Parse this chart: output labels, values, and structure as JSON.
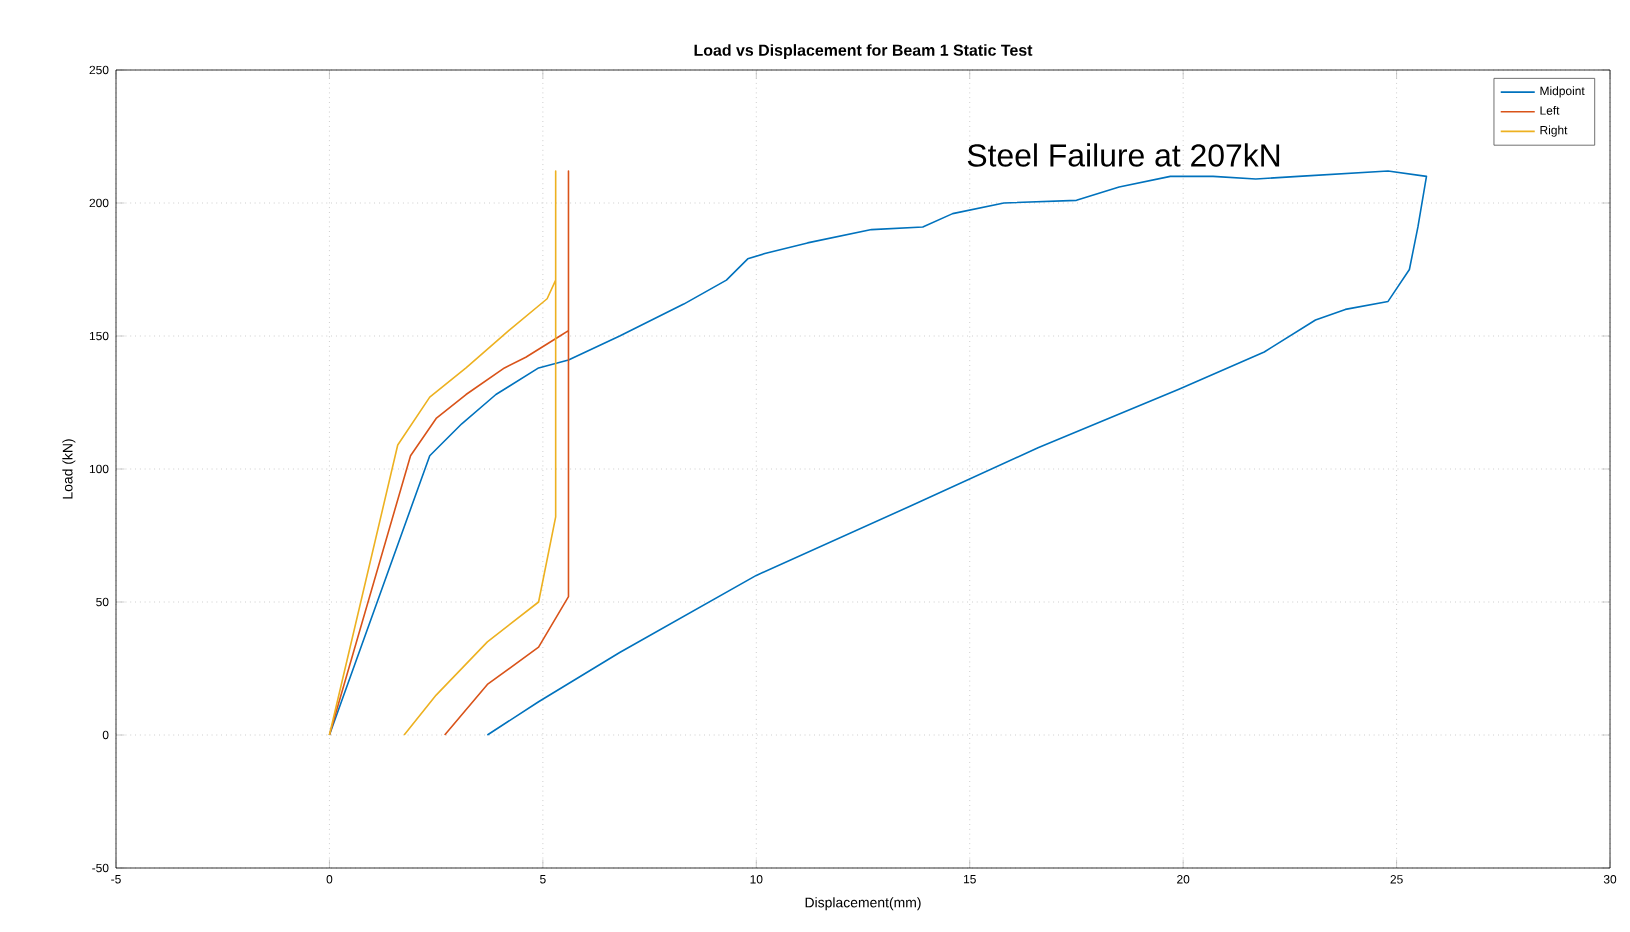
{
  "chart_data": {
    "type": "line",
    "title": "Load vs Displacement for Beam 1 Static Test",
    "xlabel": "Displacement(mm)",
    "ylabel": "Load (kN)",
    "annotations": [
      "Steel Failure  at 207kN"
    ],
    "xlim": [
      -5,
      30
    ],
    "ylim": [
      -50,
      250
    ],
    "xticks": [
      -5,
      0,
      5,
      10,
      15,
      20,
      25,
      30
    ],
    "yticks": [
      -50,
      0,
      50,
      100,
      150,
      200,
      250
    ],
    "grid": true,
    "legend": "top right",
    "marker": "none",
    "line_style": "solid",
    "series": [
      {
        "name": "Midpoint",
        "color": "#0072bd",
        "x": [
          0,
          2.35,
          3.1,
          3.9,
          4.9,
          5.6,
          6.8,
          7.8,
          8.3,
          9.3,
          9.8,
          10.2,
          11.2,
          12.7,
          13.9,
          14.6,
          15.8,
          17.5,
          18.5,
          19.7,
          20.7,
          21.7,
          22.7,
          24.8,
          25.7,
          25.5,
          25.3,
          24.8,
          23.8,
          23.1,
          21.9,
          19.9,
          16.6,
          13.6,
          10.0,
          6.8,
          4.9,
          3.7
        ],
        "values": [
          0,
          105,
          117,
          128,
          138,
          141,
          150,
          158,
          162,
          171,
          179,
          181,
          185,
          190,
          191,
          196,
          200,
          201,
          206,
          210,
          210,
          209,
          210,
          212,
          210,
          191,
          175,
          163,
          160,
          156,
          144,
          130,
          108,
          86,
          60,
          31,
          12.5,
          0
        ]
      },
      {
        "name": "Left",
        "color": "#d95319",
        "x": [
          0,
          1.9,
          2.5,
          3.2,
          4.1,
          4.6,
          5.4,
          5.6,
          5.6,
          5.6,
          4.9,
          3.7,
          2.7
        ],
        "values": [
          0,
          105,
          119,
          128,
          138,
          142,
          150,
          152,
          212,
          52,
          33,
          19,
          0
        ]
      },
      {
        "name": "Right",
        "color": "#edb120",
        "x": [
          0,
          1.6,
          2.35,
          3.2,
          4.2,
          5.1,
          5.3,
          5.3,
          5.3,
          4.9,
          3.7,
          2.5,
          1.75
        ],
        "values": [
          0,
          109,
          127,
          138,
          152,
          164,
          171,
          212,
          82,
          50,
          35,
          15,
          0
        ]
      }
    ]
  }
}
